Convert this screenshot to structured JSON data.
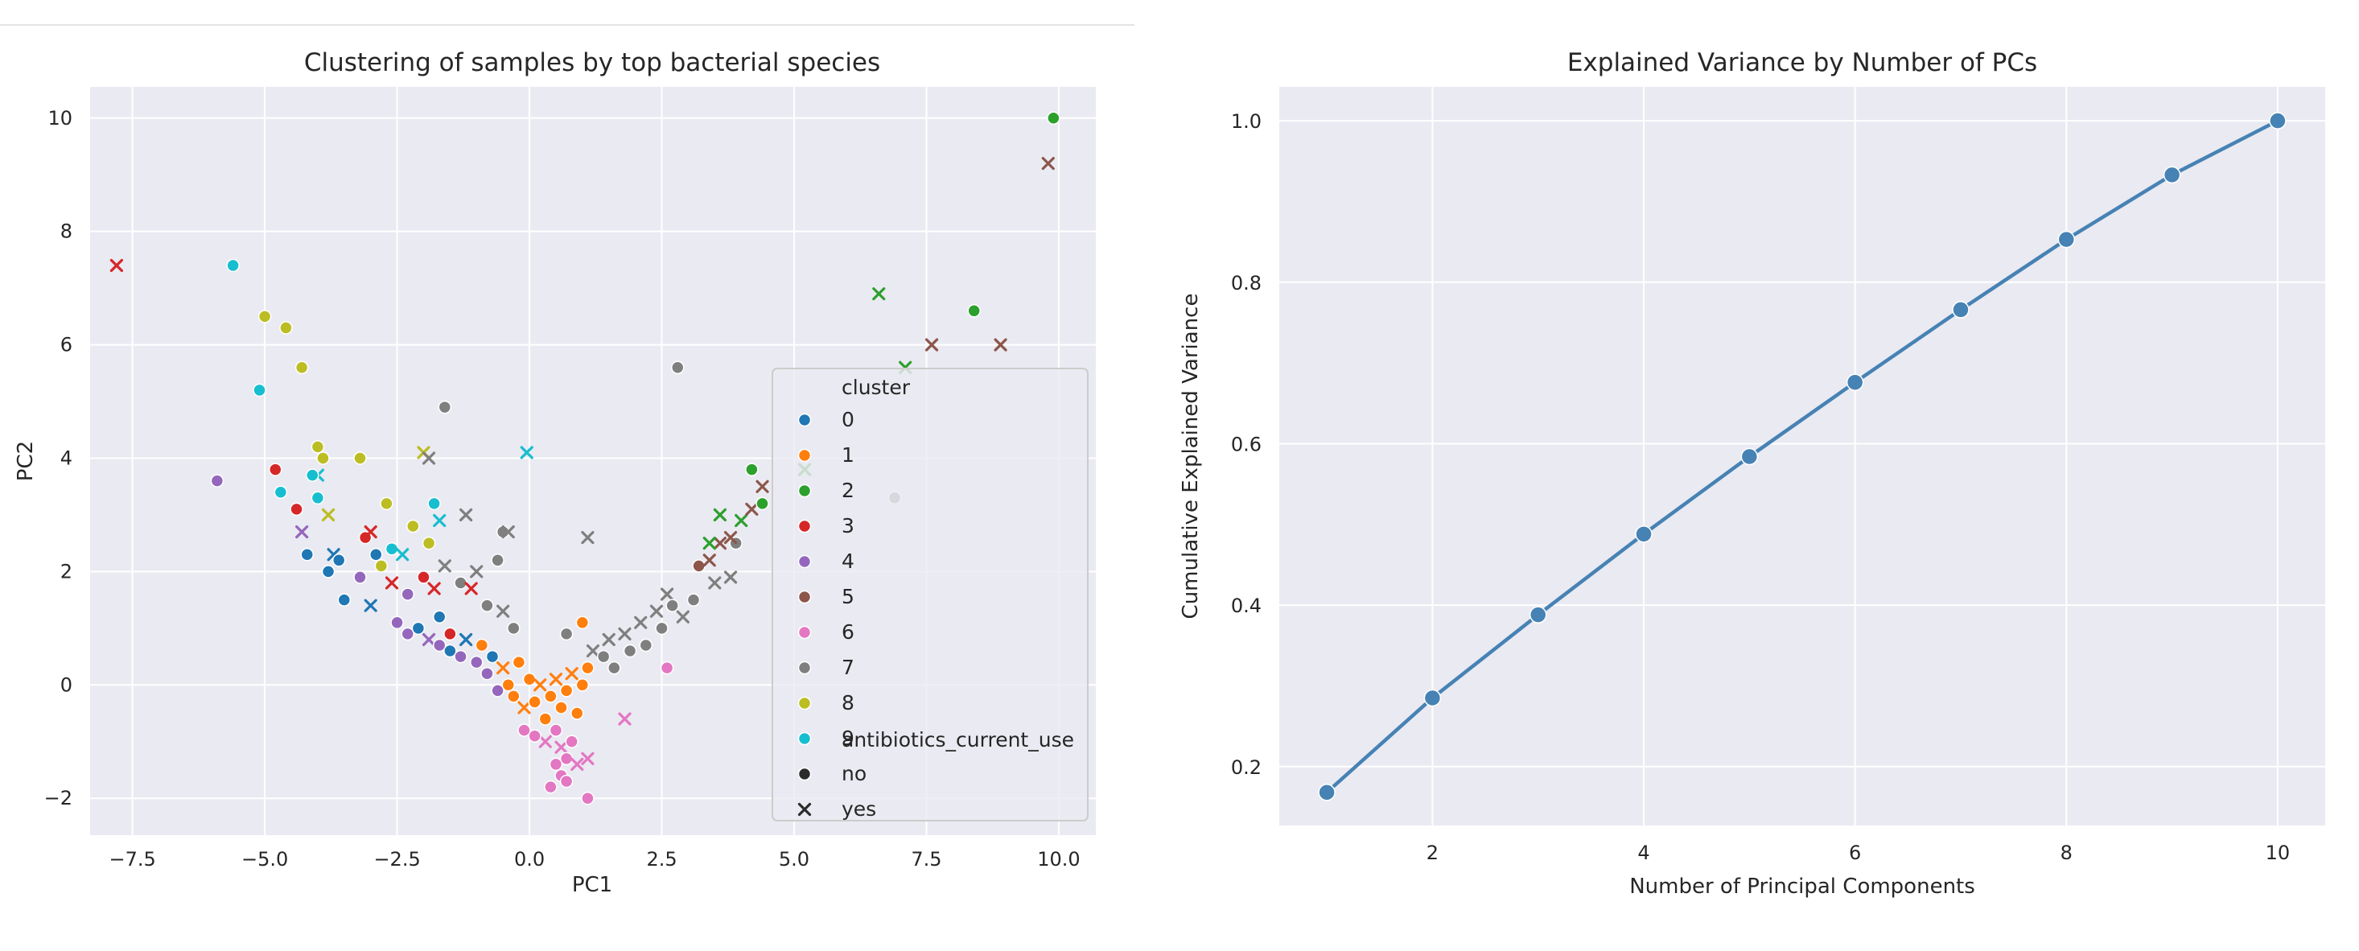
{
  "chart_data": [
    {
      "type": "scatter",
      "title": "Clustering of samples by top bacterial species",
      "xlabel": "PC1",
      "ylabel": "PC2",
      "xlim": [
        -8.3,
        10.7
      ],
      "ylim": [
        -2.65,
        10.55
      ],
      "xticks": [
        -7.5,
        -5.0,
        -2.5,
        0.0,
        2.5,
        5.0,
        7.5,
        10.0
      ],
      "xtick_labels": [
        "−7.5",
        "−5.0",
        "−2.5",
        "0.0",
        "2.5",
        "5.0",
        "7.5",
        "10.0"
      ],
      "yticks": [
        -2,
        0,
        2,
        4,
        6,
        8,
        10
      ],
      "ytick_labels": [
        "−2",
        "0",
        "2",
        "4",
        "6",
        "8",
        "10"
      ],
      "grid": true,
      "legend_position": "right",
      "hue_title": "cluster",
      "style_title": "antibiotics_current_use",
      "clusters": [
        {
          "label": "0",
          "color": "#1f77b4"
        },
        {
          "label": "1",
          "color": "#ff7f0e"
        },
        {
          "label": "2",
          "color": "#2ca02c"
        },
        {
          "label": "3",
          "color": "#d62728"
        },
        {
          "label": "4",
          "color": "#9467bd"
        },
        {
          "label": "5",
          "color": "#8c564b"
        },
        {
          "label": "6",
          "color": "#e377c2"
        },
        {
          "label": "7",
          "color": "#7f7f7f"
        },
        {
          "label": "8",
          "color": "#bcbd22"
        },
        {
          "label": "9",
          "color": "#17becf"
        }
      ],
      "styles": [
        {
          "label": "no",
          "marker": "circle"
        },
        {
          "label": "yes",
          "marker": "x"
        }
      ],
      "points": [
        [
          -7.8,
          7.4,
          3,
          "yes"
        ],
        [
          -5.6,
          7.4,
          9,
          "no"
        ],
        [
          -5.0,
          6.5,
          8,
          "no"
        ],
        [
          -4.6,
          6.3,
          8,
          "no"
        ],
        [
          -4.3,
          5.6,
          8,
          "no"
        ],
        [
          -5.1,
          5.2,
          9,
          "no"
        ],
        [
          -5.9,
          3.6,
          4,
          "no"
        ],
        [
          -4.8,
          3.8,
          3,
          "no"
        ],
        [
          -4.7,
          3.4,
          9,
          "no"
        ],
        [
          -4.4,
          3.1,
          3,
          "no"
        ],
        [
          -4.0,
          4.2,
          8,
          "no"
        ],
        [
          -3.9,
          4.0,
          8,
          "no"
        ],
        [
          -3.2,
          4.0,
          8,
          "no"
        ],
        [
          -4.0,
          3.7,
          9,
          "yes"
        ],
        [
          -4.1,
          3.7,
          9,
          "no"
        ],
        [
          -4.0,
          3.3,
          9,
          "no"
        ],
        [
          -3.8,
          3.0,
          8,
          "yes"
        ],
        [
          -2.7,
          3.2,
          8,
          "no"
        ],
        [
          -2.0,
          4.1,
          8,
          "yes"
        ],
        [
          -1.9,
          4.0,
          7,
          "yes"
        ],
        [
          -1.6,
          4.9,
          7,
          "no"
        ],
        [
          -1.8,
          3.2,
          9,
          "no"
        ],
        [
          -1.7,
          2.9,
          9,
          "yes"
        ],
        [
          -1.2,
          3.0,
          7,
          "yes"
        ],
        [
          -0.05,
          4.1,
          9,
          "yes"
        ],
        [
          -0.5,
          2.7,
          7,
          "no"
        ],
        [
          -0.4,
          2.7,
          7,
          "yes"
        ],
        [
          1.1,
          2.6,
          7,
          "yes"
        ],
        [
          2.8,
          5.6,
          7,
          "no"
        ],
        [
          -4.2,
          2.3,
          0,
          "no"
        ],
        [
          -3.7,
          2.3,
          0,
          "yes"
        ],
        [
          -3.6,
          2.2,
          0,
          "no"
        ],
        [
          -3.8,
          2.0,
          0,
          "no"
        ],
        [
          -4.3,
          2.7,
          4,
          "yes"
        ],
        [
          -3.1,
          2.6,
          3,
          "no"
        ],
        [
          -3.0,
          2.7,
          3,
          "yes"
        ],
        [
          -2.9,
          2.3,
          0,
          "no"
        ],
        [
          -3.2,
          1.9,
          4,
          "no"
        ],
        [
          -3.5,
          1.5,
          0,
          "no"
        ],
        [
          -3.0,
          1.4,
          0,
          "yes"
        ],
        [
          -2.6,
          2.4,
          9,
          "no"
        ],
        [
          -2.4,
          2.3,
          9,
          "yes"
        ],
        [
          -2.2,
          2.8,
          8,
          "no"
        ],
        [
          -2.8,
          2.1,
          8,
          "no"
        ],
        [
          -2.6,
          1.8,
          3,
          "yes"
        ],
        [
          -2.3,
          1.6,
          4,
          "no"
        ],
        [
          -2.0,
          1.9,
          3,
          "no"
        ],
        [
          -1.8,
          1.7,
          3,
          "yes"
        ],
        [
          -1.7,
          1.2,
          0,
          "no"
        ],
        [
          -1.9,
          2.5,
          8,
          "no"
        ],
        [
          -1.6,
          2.1,
          7,
          "yes"
        ],
        [
          -1.3,
          1.8,
          7,
          "no"
        ],
        [
          -1.0,
          2.0,
          7,
          "yes"
        ],
        [
          -1.1,
          1.7,
          3,
          "yes"
        ],
        [
          -0.8,
          1.4,
          7,
          "no"
        ],
        [
          -0.6,
          2.2,
          7,
          "no"
        ],
        [
          -0.5,
          1.3,
          7,
          "yes"
        ],
        [
          -0.3,
          1.0,
          7,
          "no"
        ],
        [
          -2.5,
          1.1,
          4,
          "no"
        ],
        [
          -2.3,
          0.9,
          4,
          "no"
        ],
        [
          -2.1,
          1.0,
          0,
          "no"
        ],
        [
          -1.9,
          0.8,
          4,
          "yes"
        ],
        [
          -1.7,
          0.7,
          4,
          "no"
        ],
        [
          -1.5,
          0.9,
          3,
          "no"
        ],
        [
          -1.5,
          0.6,
          0,
          "no"
        ],
        [
          -1.3,
          0.5,
          4,
          "no"
        ],
        [
          -1.2,
          0.8,
          0,
          "yes"
        ],
        [
          -1.0,
          0.4,
          4,
          "no"
        ],
        [
          -0.9,
          0.7,
          1,
          "no"
        ],
        [
          -0.8,
          0.2,
          4,
          "no"
        ],
        [
          -0.7,
          0.5,
          0,
          "no"
        ],
        [
          -0.6,
          -0.1,
          4,
          "no"
        ],
        [
          -0.5,
          0.3,
          1,
          "yes"
        ],
        [
          -0.4,
          0.0,
          1,
          "no"
        ],
        [
          -0.3,
          -0.2,
          1,
          "no"
        ],
        [
          -0.2,
          0.4,
          1,
          "no"
        ],
        [
          -0.1,
          -0.4,
          1,
          "yes"
        ],
        [
          0.0,
          0.1,
          1,
          "no"
        ],
        [
          0.1,
          -0.3,
          1,
          "no"
        ],
        [
          0.2,
          0.0,
          1,
          "yes"
        ],
        [
          0.3,
          -0.6,
          1,
          "no"
        ],
        [
          0.4,
          -0.2,
          1,
          "no"
        ],
        [
          0.5,
          0.1,
          1,
          "yes"
        ],
        [
          0.6,
          -0.4,
          1,
          "no"
        ],
        [
          0.7,
          -0.1,
          1,
          "no"
        ],
        [
          0.8,
          0.2,
          1,
          "yes"
        ],
        [
          0.9,
          -0.5,
          1,
          "no"
        ],
        [
          1.0,
          0.0,
          1,
          "no"
        ],
        [
          1.1,
          0.3,
          1,
          "no"
        ],
        [
          1.2,
          0.6,
          7,
          "yes"
        ],
        [
          1.4,
          0.5,
          7,
          "no"
        ],
        [
          1.5,
          0.8,
          7,
          "yes"
        ],
        [
          1.6,
          0.3,
          7,
          "no"
        ],
        [
          1.8,
          0.9,
          7,
          "yes"
        ],
        [
          1.9,
          0.6,
          7,
          "no"
        ],
        [
          2.1,
          1.1,
          7,
          "yes"
        ],
        [
          2.2,
          0.7,
          7,
          "no"
        ],
        [
          2.4,
          1.3,
          7,
          "yes"
        ],
        [
          2.5,
          1.0,
          7,
          "no"
        ],
        [
          2.6,
          1.6,
          7,
          "yes"
        ],
        [
          2.7,
          1.4,
          7,
          "no"
        ],
        [
          2.9,
          1.2,
          7,
          "yes"
        ],
        [
          3.1,
          1.5,
          7,
          "no"
        ],
        [
          3.5,
          1.8,
          7,
          "yes"
        ],
        [
          3.8,
          1.9,
          7,
          "yes"
        ],
        [
          3.9,
          2.5,
          7,
          "no"
        ],
        [
          3.2,
          2.1,
          5,
          "no"
        ],
        [
          3.4,
          2.2,
          5,
          "yes"
        ],
        [
          3.6,
          2.5,
          5,
          "yes"
        ],
        [
          3.8,
          2.6,
          5,
          "yes"
        ],
        [
          4.0,
          2.9,
          2,
          "yes"
        ],
        [
          3.6,
          3.0,
          2,
          "yes"
        ],
        [
          3.4,
          2.5,
          2,
          "yes"
        ],
        [
          4.2,
          3.1,
          5,
          "yes"
        ],
        [
          4.2,
          3.8,
          2,
          "no"
        ],
        [
          4.4,
          3.2,
          2,
          "no"
        ],
        [
          4.4,
          3.5,
          5,
          "yes"
        ],
        [
          5.2,
          3.8,
          2,
          "yes"
        ],
        [
          6.6,
          6.9,
          2,
          "yes"
        ],
        [
          7.1,
          5.6,
          2,
          "yes"
        ],
        [
          7.6,
          6.0,
          5,
          "yes"
        ],
        [
          8.4,
          6.6,
          2,
          "no"
        ],
        [
          8.9,
          6.0,
          5,
          "yes"
        ],
        [
          9.8,
          9.2,
          5,
          "yes"
        ],
        [
          9.9,
          10.0,
          2,
          "no"
        ],
        [
          6.9,
          3.3,
          7,
          "no"
        ],
        [
          1.0,
          1.1,
          1,
          "no"
        ],
        [
          0.7,
          0.9,
          7,
          "no"
        ],
        [
          0.5,
          -0.8,
          6,
          "no"
        ],
        [
          0.6,
          -1.1,
          6,
          "yes"
        ],
        [
          0.7,
          -1.3,
          6,
          "no"
        ],
        [
          0.8,
          -1.0,
          6,
          "no"
        ],
        [
          0.9,
          -1.4,
          6,
          "yes"
        ],
        [
          0.6,
          -1.6,
          6,
          "no"
        ],
        [
          0.5,
          -1.4,
          6,
          "no"
        ],
        [
          0.3,
          -1.0,
          6,
          "yes"
        ],
        [
          0.1,
          -0.9,
          6,
          "no"
        ],
        [
          -0.1,
          -0.8,
          6,
          "no"
        ],
        [
          1.1,
          -1.3,
          6,
          "yes"
        ],
        [
          1.1,
          -2.0,
          6,
          "no"
        ],
        [
          1.8,
          -0.6,
          6,
          "yes"
        ],
        [
          2.6,
          0.3,
          6,
          "no"
        ],
        [
          0.4,
          -1.8,
          6,
          "no"
        ],
        [
          0.7,
          -1.7,
          6,
          "no"
        ]
      ]
    },
    {
      "type": "line",
      "title": "Explained Variance by Number of PCs",
      "xlabel": "Number of Principal Components",
      "ylabel": "Cumulative Explained Variance",
      "x": [
        1,
        2,
        3,
        4,
        5,
        6,
        7,
        8,
        9,
        10
      ],
      "y": [
        0.168,
        0.285,
        0.388,
        0.488,
        0.584,
        0.676,
        0.766,
        0.853,
        0.933,
        1.0
      ],
      "xlim": [
        0.55,
        10.45
      ],
      "ylim": [
        0.127,
        1.042
      ],
      "xticks": [
        2,
        4,
        6,
        8,
        10
      ],
      "yticks": [
        0.2,
        0.4,
        0.6,
        0.8,
        1.0
      ],
      "ytick_labels": [
        "0.2",
        "0.4",
        "0.6",
        "0.8",
        "1.0"
      ],
      "grid": true,
      "color": "#4682b4"
    }
  ]
}
